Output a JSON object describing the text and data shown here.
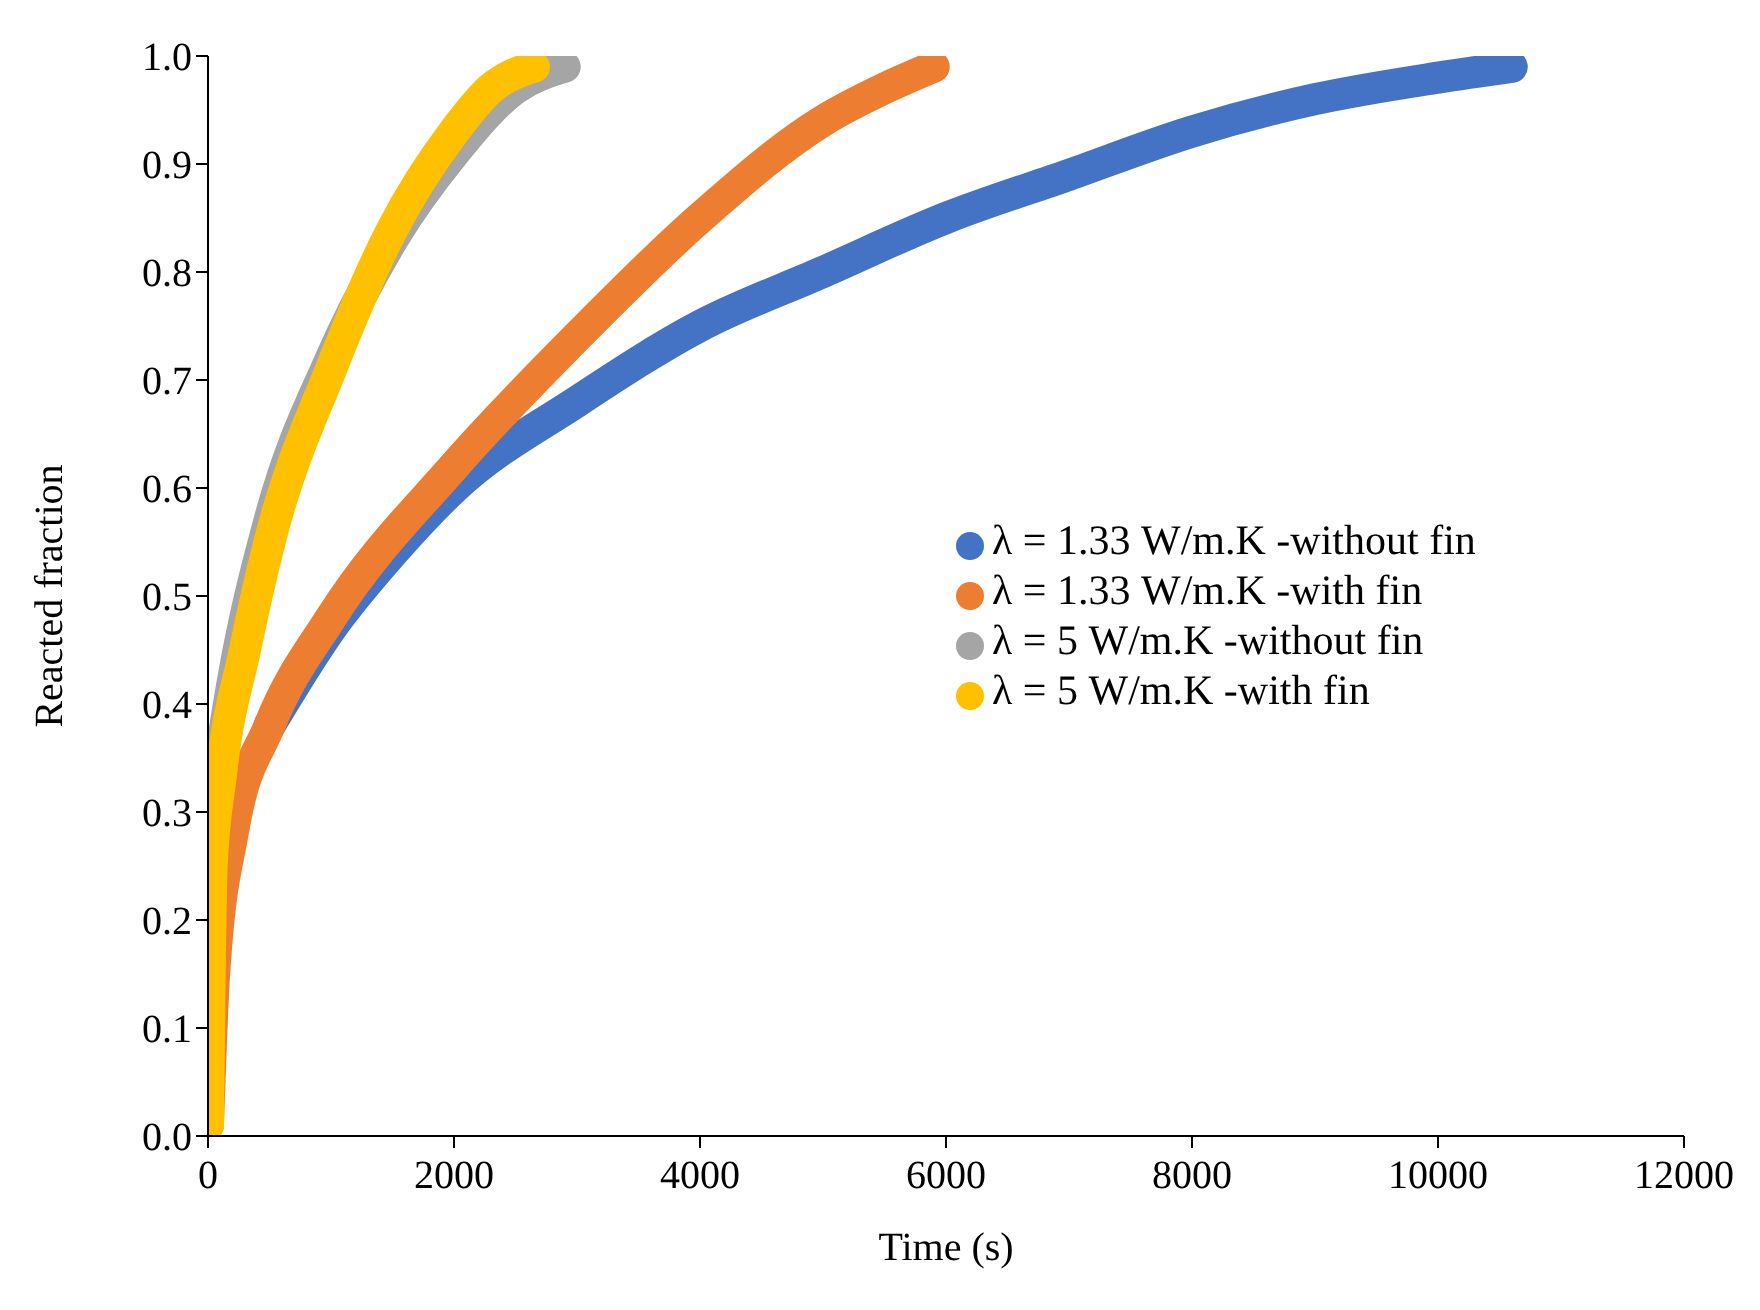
{
  "chart_data": {
    "type": "line",
    "line_style": "solid",
    "xlabel": "Time (s)",
    "ylabel": "Reacted fraction",
    "xlim": [
      0,
      12000
    ],
    "xticks": [
      0,
      2000,
      4000,
      6000,
      8000,
      10000,
      12000
    ],
    "ylim": [
      0,
      1
    ],
    "yticks": [
      {
        "value": 0,
        "label": "0.0"
      },
      {
        "value": 0.1,
        "label": "0.1"
      },
      {
        "value": 0.2,
        "label": "0.2"
      },
      {
        "value": 0.3,
        "label": "0.3"
      },
      {
        "value": 0.4,
        "label": "0.4"
      },
      {
        "value": 0.5,
        "label": "0.5"
      },
      {
        "value": 0.6,
        "label": "0.6"
      },
      {
        "value": 0.7,
        "label": "0.7"
      },
      {
        "value": 0.8,
        "label": "0.8"
      },
      {
        "value": 0.9,
        "label": "0.9"
      },
      {
        "value": 1,
        "label": "1.0"
      }
    ],
    "grid": false,
    "legend": "right",
    "series": [
      {
        "name": "λ = 1.33 W/m.K -without fin",
        "color": "#4472c4",
        "x": [
          500,
          1000,
          1500,
          2000,
          3000,
          4000,
          5000,
          6000,
          7000,
          8000,
          9000,
          10000,
          10600
        ],
        "values": [
          0.38,
          0.47,
          0.54,
          0.6,
          0.68,
          0.75,
          0.8,
          0.85,
          0.89,
          0.93,
          0.96,
          0.98,
          0.99
        ]
      },
      {
        "name": "λ = 1.33 W/m.K -with fin",
        "color": "#ed7d31",
        "x": [
          0,
          50,
          200,
          500,
          1000,
          2000,
          3000,
          4000,
          5000,
          5500,
          5900
        ],
        "values": [
          0.01,
          0.15,
          0.28,
          0.38,
          0.48,
          0.62,
          0.74,
          0.85,
          0.94,
          0.97,
          0.99
        ]
      },
      {
        "name": "λ = 5 W/m.K -without fin",
        "color": "#a5a5a5",
        "x": [
          100,
          200,
          500,
          1000,
          1500,
          2000,
          2500,
          2900
        ],
        "values": [
          0.35,
          0.42,
          0.57,
          0.72,
          0.83,
          0.91,
          0.97,
          0.99
        ]
      },
      {
        "name": "λ = 5 W/m.K -with fin",
        "color": "#ffc000",
        "x": [
          0,
          30,
          100,
          300,
          500,
          1000,
          1500,
          2000,
          2300,
          2650
        ],
        "values": [
          0.01,
          0.25,
          0.33,
          0.45,
          0.55,
          0.71,
          0.84,
          0.93,
          0.97,
          0.99
        ]
      }
    ]
  }
}
